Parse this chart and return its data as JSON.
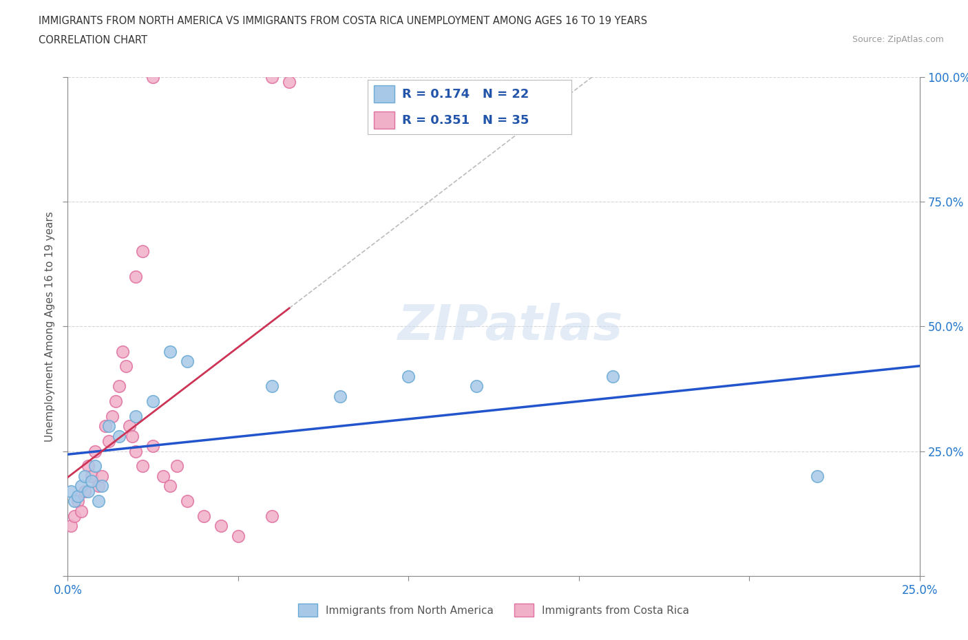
{
  "title_line1": "IMMIGRANTS FROM NORTH AMERICA VS IMMIGRANTS FROM COSTA RICA UNEMPLOYMENT AMONG AGES 16 TO 19 YEARS",
  "title_line2": "CORRELATION CHART",
  "source": "Source: ZipAtlas.com",
  "ylabel": "Unemployment Among Ages 16 to 19 years",
  "xlim": [
    0,
    0.25
  ],
  "ylim": [
    0,
    1.0
  ],
  "xticks": [
    0.0,
    0.05,
    0.1,
    0.15,
    0.2,
    0.25
  ],
  "yticks": [
    0.0,
    0.25,
    0.5,
    0.75,
    1.0
  ],
  "xticklabels": [
    "0.0%",
    "",
    "",
    "",
    "",
    "25.0%"
  ],
  "yticklabels": [
    "",
    "25.0%",
    "50.0%",
    "75.0%",
    "100.0%"
  ],
  "watermark": "ZIPatlas",
  "north_america_color": "#a8c8e8",
  "north_america_edge": "#6aaad4",
  "costa_rica_color": "#f0b0c8",
  "costa_rica_edge": "#e070a0",
  "trendline_north_america_color": "#2255cc",
  "trendline_costa_rica_color": "#cc3355",
  "grid_color": "#cccccc",
  "R_north_america": 0.174,
  "N_north_america": 22,
  "R_costa_rica": 0.351,
  "N_costa_rica": 35,
  "north_america_x": [
    0.001,
    0.002,
    0.003,
    0.004,
    0.005,
    0.006,
    0.007,
    0.008,
    0.009,
    0.01,
    0.012,
    0.015,
    0.02,
    0.025,
    0.03,
    0.035,
    0.06,
    0.08,
    0.1,
    0.12,
    0.16,
    0.22
  ],
  "north_america_y": [
    0.17,
    0.15,
    0.16,
    0.18,
    0.2,
    0.17,
    0.19,
    0.22,
    0.15,
    0.18,
    0.3,
    0.28,
    0.32,
    0.35,
    0.45,
    0.43,
    0.38,
    0.36,
    0.4,
    0.38,
    0.4,
    0.2
  ],
  "costa_rica_x": [
    0.001,
    0.002,
    0.003,
    0.004,
    0.005,
    0.006,
    0.007,
    0.008,
    0.009,
    0.01,
    0.011,
    0.012,
    0.013,
    0.014,
    0.015,
    0.016,
    0.017,
    0.018,
    0.019,
    0.02,
    0.022,
    0.025,
    0.028,
    0.03,
    0.032,
    0.035,
    0.04,
    0.045,
    0.05,
    0.06,
    0.02,
    0.022,
    0.025,
    0.06,
    0.065
  ],
  "costa_rica_y": [
    0.1,
    0.12,
    0.15,
    0.13,
    0.17,
    0.22,
    0.2,
    0.25,
    0.18,
    0.2,
    0.3,
    0.27,
    0.32,
    0.35,
    0.38,
    0.45,
    0.42,
    0.3,
    0.28,
    0.25,
    0.22,
    0.26,
    0.2,
    0.18,
    0.22,
    0.15,
    0.12,
    0.1,
    0.08,
    0.12,
    0.6,
    0.65,
    1.0,
    1.0,
    0.99
  ],
  "background_color": "#ffffff",
  "title_color": "#333333",
  "axis_label_color": "#555555",
  "tick_color": "#2277cc",
  "legend_text_color": "#2255aa"
}
